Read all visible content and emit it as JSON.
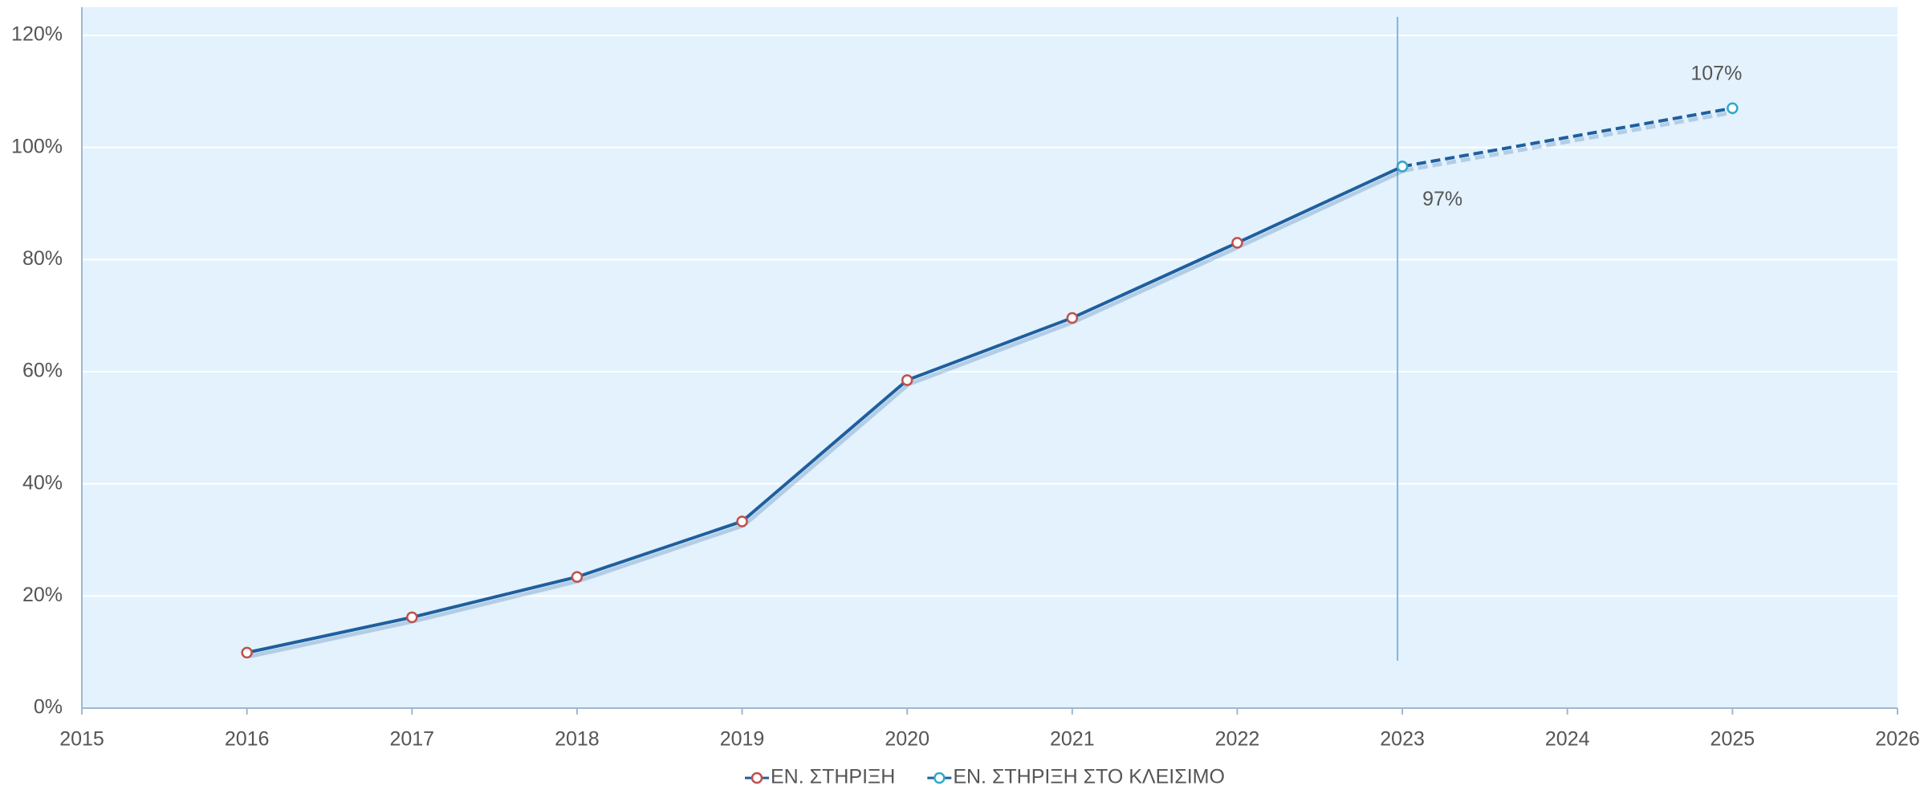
{
  "chart_data": {
    "type": "line",
    "xlim": [
      2015,
      2026
    ],
    "xticks": [
      2015,
      2016,
      2017,
      2018,
      2019,
      2020,
      2021,
      2022,
      2023,
      2024,
      2025,
      2026
    ],
    "ylim": [
      0,
      120
    ],
    "yticks": [
      {
        "value": 0,
        "label": "0%"
      },
      {
        "value": 20,
        "label": "20%"
      },
      {
        "value": 40,
        "label": "40%"
      },
      {
        "value": 60,
        "label": "60%"
      },
      {
        "value": 80,
        "label": "80%"
      },
      {
        "value": 100,
        "label": "100%"
      },
      {
        "value": 120,
        "label": "120%"
      }
    ],
    "grid": true,
    "vline": 2023,
    "legend": "bottom",
    "series": [
      {
        "name": "ΕΝ. ΣΤΗΡΙΞΗ",
        "color": "#1f5f9e",
        "marker_color": "#c0504d",
        "dashed": false,
        "x": [
          2016,
          2017,
          2018,
          2019,
          2020,
          2021,
          2022,
          2023
        ],
        "values": [
          9.9,
          16.2,
          23.4,
          33.3,
          58.5,
          69.6,
          83.0,
          96.6
        ]
      },
      {
        "name": "ΕΝ. ΣΤΗΡΙΞΗ ΣΤΟ ΚΛΕΙΣΙΜΟ",
        "color": "#1f5f9e",
        "marker_color": "#31a8c9",
        "dashed": true,
        "x": [
          2023,
          2025
        ],
        "values": [
          96.6,
          107
        ],
        "value_labels": [
          "97%",
          "107%"
        ]
      }
    ]
  }
}
